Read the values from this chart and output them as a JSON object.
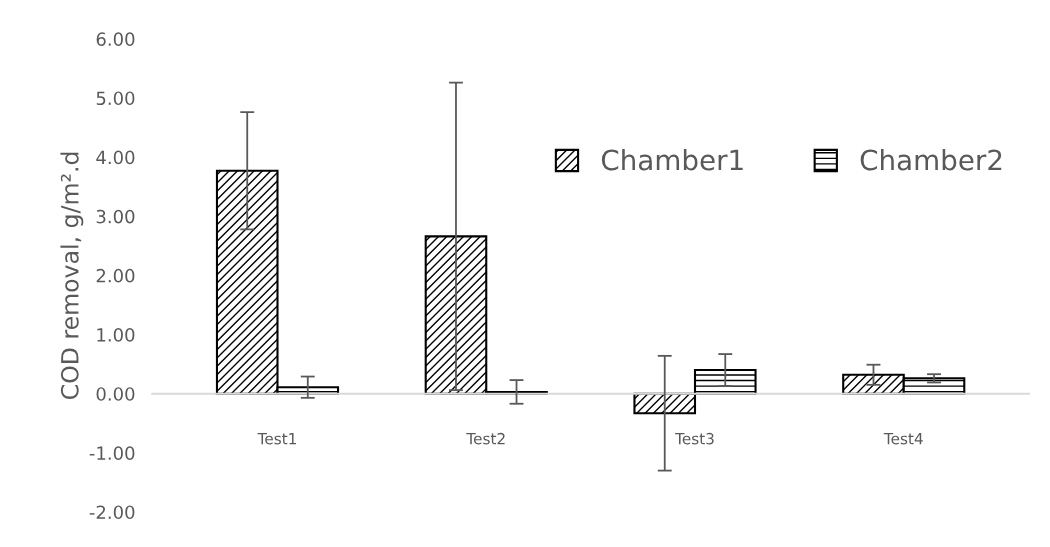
{
  "chart_data": {
    "type": "bar",
    "ylabel": "COD removal, g/m².d",
    "categories": [
      "Test1",
      "Test2",
      "Test3",
      "Test4"
    ],
    "series": [
      {
        "name": "Chamber1",
        "color": "#000000",
        "values": [
          3.77,
          2.66,
          -0.33,
          0.32
        ],
        "errors": [
          0.99,
          2.6,
          0.97,
          0.17
        ]
      },
      {
        "name": "Chamber2",
        "color": "#000000",
        "values": [
          0.11,
          0.03,
          0.4,
          0.26
        ],
        "errors": [
          0.18,
          0.2,
          0.27,
          0.07
        ]
      }
    ],
    "ylim": [
      -2,
      6
    ],
    "yticks": [
      {
        "value": -2,
        "label": "-2.00"
      },
      {
        "value": -1,
        "label": "-1.00"
      },
      {
        "value": 0,
        "label": "0.00"
      },
      {
        "value": 1,
        "label": "1.00"
      },
      {
        "value": 2,
        "label": "2.00"
      },
      {
        "value": 3,
        "label": "3.00"
      },
      {
        "value": 4,
        "label": "4.00"
      },
      {
        "value": 5,
        "label": "5.00"
      },
      {
        "value": 6,
        "label": "6.00"
      }
    ],
    "grid": false,
    "legend": "top right"
  }
}
